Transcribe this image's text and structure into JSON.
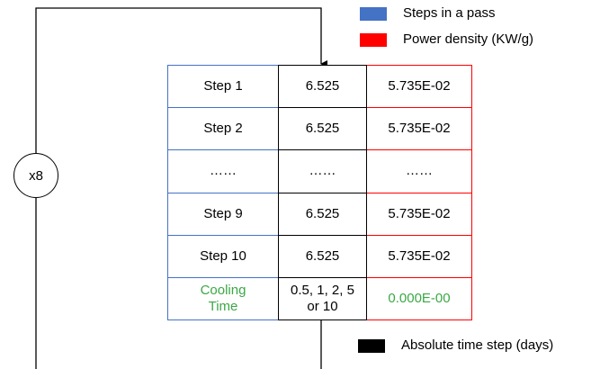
{
  "legend": [
    {
      "label": "Steps in a pass",
      "color": "#4472c4"
    },
    {
      "label": "Power density (KW/g)",
      "color": "#ff0000"
    },
    {
      "label": "Absolute time step (days)",
      "color": "#000000"
    }
  ],
  "loop": {
    "label": "x8"
  },
  "table": {
    "rows": [
      [
        "Step 1",
        "6.525",
        "5.735E-02"
      ],
      [
        "Step 2",
        "6.525",
        "5.735E-02"
      ],
      [
        "……",
        "……",
        "……"
      ],
      [
        "Step 9",
        "6.525",
        "5.735E-02"
      ],
      [
        "Step 10",
        "6.525",
        "5.735E-02"
      ],
      [
        "Cooling Time",
        "0.5, 1, 2, 5 or 10",
        "0.000E-00"
      ]
    ]
  }
}
